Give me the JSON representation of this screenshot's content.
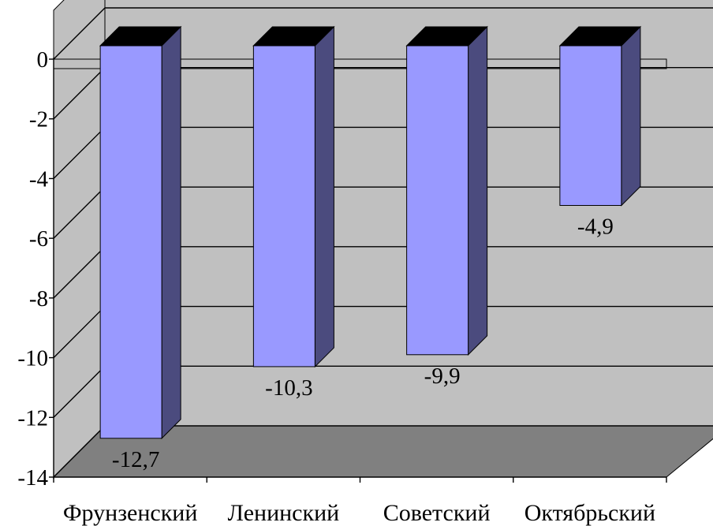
{
  "chart_data": {
    "type": "bar",
    "style": "3d-column",
    "categories": [
      "Фрунзенский",
      "Ленинский",
      "Советский",
      "Октябрьский"
    ],
    "series": [
      {
        "values": [
          -12.7,
          -10.3,
          -9.9,
          -4.9
        ]
      }
    ],
    "data_labels": [
      "-12,7",
      "-10,3",
      "-9,9",
      "-4,9"
    ],
    "ylim": [
      -14,
      0
    ],
    "yticks": [
      0,
      -2,
      -4,
      -6,
      -8,
      -10,
      -12,
      -14
    ],
    "ytick_labels": [
      "0",
      "-2",
      "-4",
      "-6",
      "-8",
      "-10",
      "-12",
      "-14"
    ],
    "grid": true,
    "legend": "none",
    "title": "",
    "xlabel": "",
    "ylabel": "",
    "colors": {
      "bar_front": "#9999ff",
      "bar_side": "#4b4b7e",
      "bar_top": "#000000",
      "back_wall": "#c0c0c0",
      "side_wall": "#c0c0c0",
      "floor": "#808080",
      "axis": "#000000",
      "grid": "#000000"
    }
  }
}
